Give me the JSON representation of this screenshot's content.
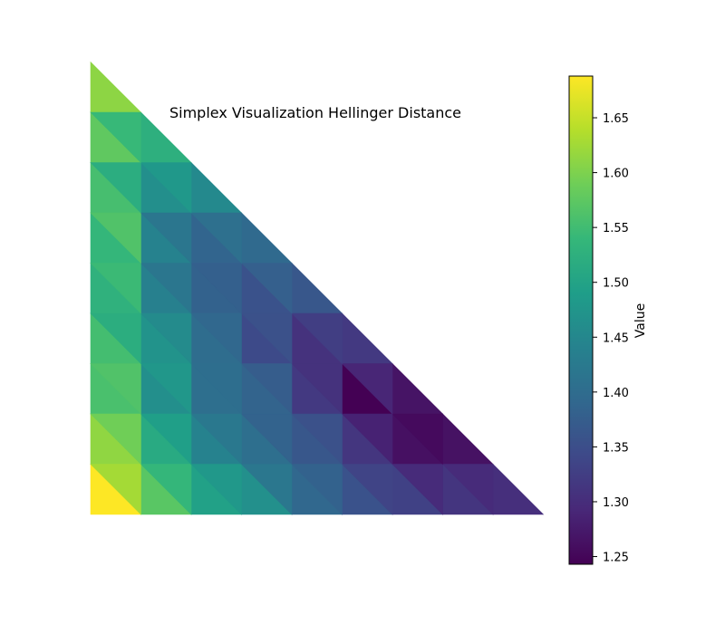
{
  "chart_data": {
    "type": "heatmap",
    "title": "Simplex Visualization Hellinger Distance",
    "colorbar": {
      "label": "Value",
      "colormap": "viridis",
      "vmin": 1.243,
      "vmax": 1.688,
      "ticks": [
        1.25,
        1.3,
        1.35,
        1.4,
        1.45,
        1.5,
        1.55,
        1.6,
        1.65
      ],
      "tick_labels": [
        "1.25",
        "1.30",
        "1.35",
        "1.40",
        "1.45",
        "1.50",
        "1.55",
        "1.60",
        "1.65"
      ]
    },
    "grid": {
      "shape": "right-triangle",
      "n": 9,
      "row_order": "bottom-to-top",
      "lower_triangles": [
        [
          1.688,
          1.571,
          1.497,
          1.465,
          1.392,
          1.357,
          1.33,
          1.312,
          1.303
        ],
        [
          1.613,
          1.513,
          1.441,
          1.404,
          1.365,
          1.313,
          1.262,
          1.264
        ],
        [
          1.558,
          1.464,
          1.405,
          1.385,
          1.318,
          1.243,
          1.267
        ],
        [
          1.553,
          1.47,
          1.401,
          1.344,
          1.308,
          1.318
        ],
        [
          1.528,
          1.437,
          1.382,
          1.357,
          1.365
        ],
        [
          1.537,
          1.441,
          1.387,
          1.396
        ],
        [
          1.555,
          1.464,
          1.453
        ],
        [
          1.577,
          1.523
        ],
        [
          1.611
        ]
      ],
      "upper_triangles": [
        [
          1.627,
          1.537,
          1.479,
          1.42,
          1.382,
          1.334,
          1.297,
          1.297
        ],
        [
          1.59,
          1.492,
          1.422,
          1.384,
          1.354,
          1.285,
          1.255
        ],
        [
          1.564,
          1.478,
          1.403,
          1.374,
          1.307,
          1.29
        ],
        [
          1.52,
          1.456,
          1.392,
          1.355,
          1.325
        ],
        [
          1.545,
          1.418,
          1.379,
          1.378
        ],
        [
          1.564,
          1.418,
          1.407
        ],
        [
          1.519,
          1.48
        ],
        [
          1.541
        ]
      ]
    }
  }
}
